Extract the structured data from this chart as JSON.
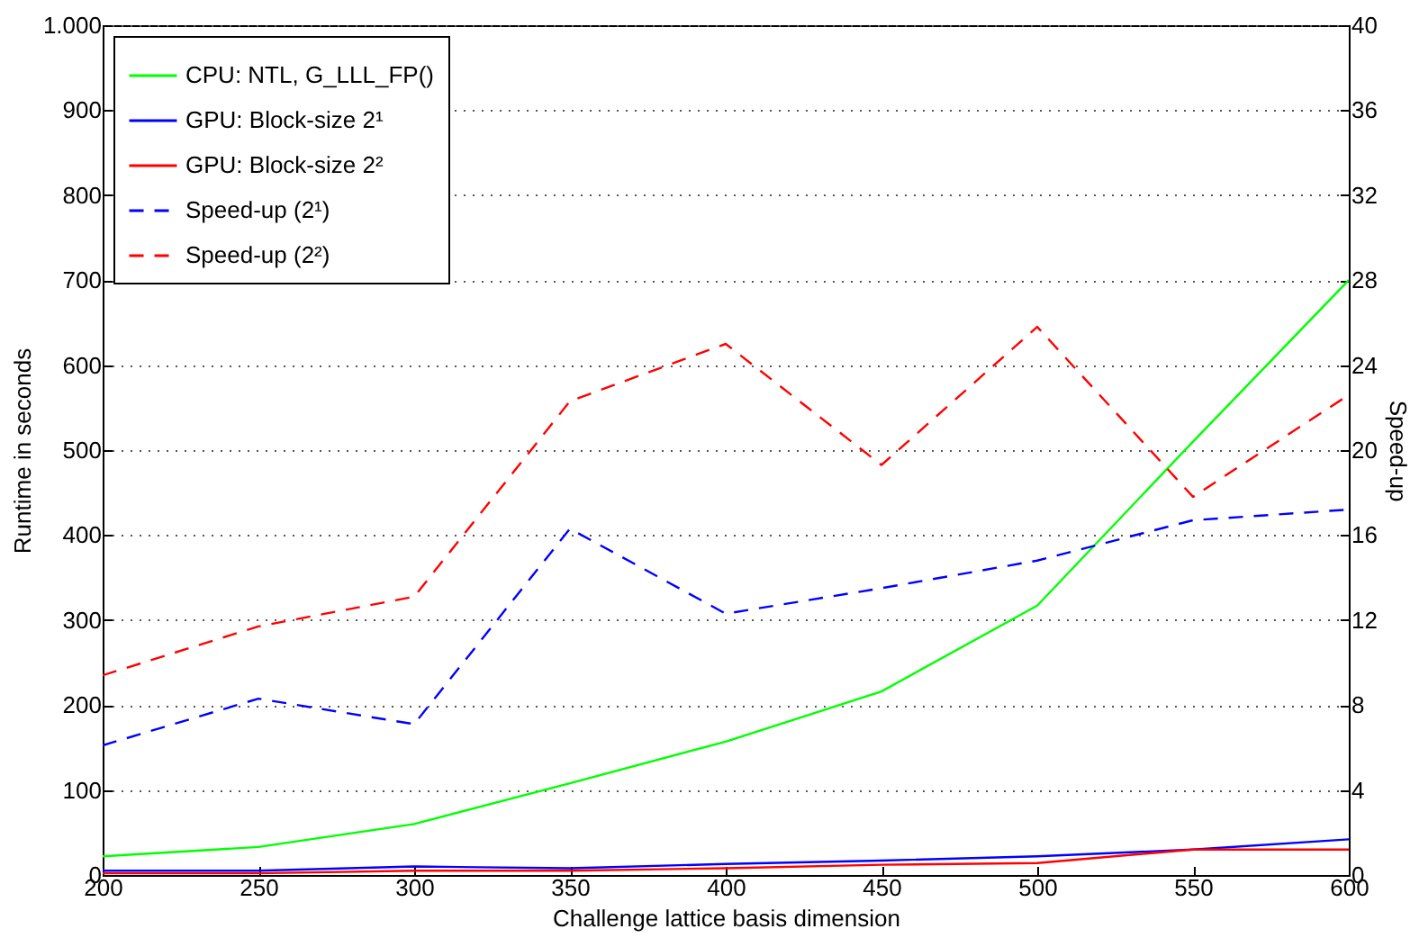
{
  "chart_data": {
    "type": "line",
    "xlabel": "Challenge lattice basis dimension",
    "ylabel": "Runtime in seconds",
    "y2label": "Speed-up",
    "x": [
      200,
      250,
      300,
      350,
      400,
      450,
      500,
      550,
      600
    ],
    "xlim": [
      200,
      600
    ],
    "xticks": [
      200,
      250,
      300,
      350,
      400,
      450,
      500,
      550,
      600
    ],
    "ylim": [
      0,
      1000
    ],
    "yticks": [
      0,
      100,
      200,
      300,
      400,
      500,
      600,
      700,
      800,
      900,
      {
        "value": 1000,
        "label": "1.000"
      }
    ],
    "y2lim": [
      0,
      40
    ],
    "y2ticks": [
      0,
      4,
      8,
      12,
      16,
      20,
      24,
      28,
      32,
      36,
      40
    ],
    "grid": "y",
    "legend": "top left",
    "series": [
      {
        "name": "CPU: NTL, G_LLL_FP()",
        "color": "#00ff00",
        "line_style": "solid",
        "values": [
          22,
          33,
          60,
          108,
          157,
          216,
          317,
          510,
          700
        ]
      },
      {
        "name": "GPU: Block-size 2¹",
        "color": "#0000ff",
        "line_style": "solid",
        "values": [
          5,
          5,
          10,
          8,
          13,
          17,
          22,
          30,
          42
        ]
      },
      {
        "name": "GPU: Block-size 2²",
        "color": "#ff0000",
        "line_style": "solid",
        "values": [
          2,
          2,
          5,
          5,
          8,
          12,
          14,
          30,
          30
        ]
      },
      {
        "name": "Speed-up (2¹)",
        "color": "#0000ff",
        "line_style": "dashed",
        "axis": "y2",
        "values": [
          6.1,
          8.3,
          7.1,
          16.3,
          12.3,
          13.5,
          14.8,
          16.7,
          17.2
        ]
      },
      {
        "name": "Speed-up (2²)",
        "color": "#ff0000",
        "line_style": "dashed",
        "axis": "y2",
        "values": [
          9.4,
          11.7,
          13.1,
          22.3,
          25,
          19.3,
          25.8,
          17.8,
          22.6
        ]
      }
    ]
  }
}
